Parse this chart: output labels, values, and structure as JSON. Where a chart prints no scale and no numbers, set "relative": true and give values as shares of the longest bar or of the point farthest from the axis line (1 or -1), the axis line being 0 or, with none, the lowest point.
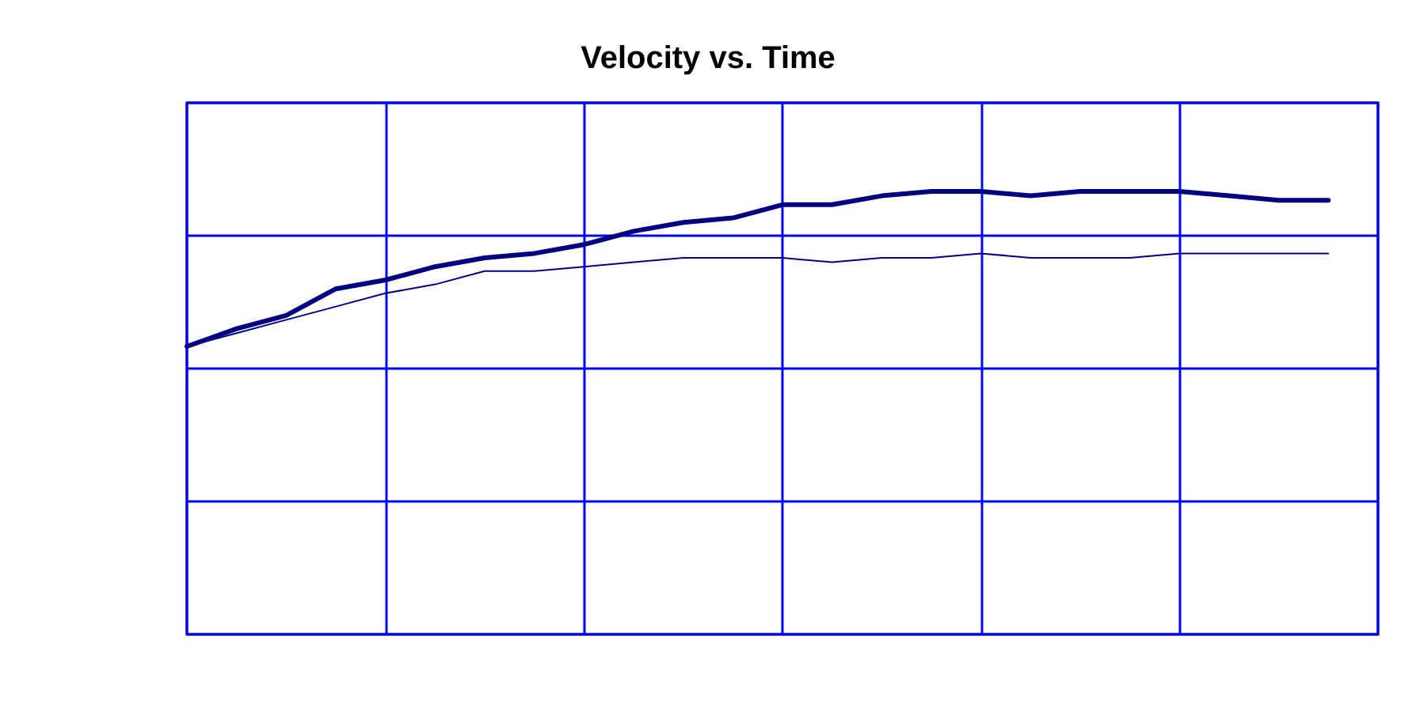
{
  "chart_data": {
    "type": "line",
    "title": "Velocity vs. Time",
    "relative": true,
    "grid": true,
    "marker": "none",
    "line_style": "solid",
    "categories": [
      null,
      null,
      null,
      null,
      null,
      null,
      null,
      null,
      null,
      null,
      null,
      null,
      null,
      null,
      null,
      null,
      null,
      null,
      null,
      null,
      null,
      null,
      null,
      null,
      null
    ],
    "series": [
      {
        "color": "#000080",
        "values": [
          0.65,
          0.69,
          0.72,
          0.78,
          0.8,
          0.83,
          0.85,
          0.86,
          0.88,
          0.91,
          0.93,
          0.94,
          0.97,
          0.97,
          0.99,
          1.0,
          1.0,
          0.99,
          1.0,
          1.0,
          1.0,
          0.99,
          0.98,
          0.98,
          null
        ]
      },
      {
        "color": "#000080",
        "values": [
          0.65,
          0.68,
          0.71,
          0.74,
          0.77,
          0.79,
          0.82,
          0.82,
          0.83,
          0.84,
          0.85,
          0.85,
          0.85,
          0.84,
          0.85,
          0.85,
          0.86,
          0.85,
          0.85,
          0.85,
          0.86,
          0.86,
          0.86,
          0.86,
          null
        ]
      }
    ]
  }
}
